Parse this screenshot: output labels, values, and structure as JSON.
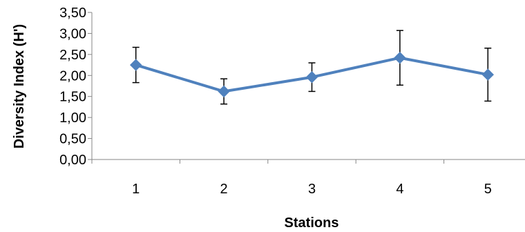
{
  "chart_data": {
    "type": "line",
    "title": "",
    "xlabel": "Stations",
    "ylabel": "Diversity Index (H')",
    "categories": [
      "1",
      "2",
      "3",
      "4",
      "5"
    ],
    "series": [
      {
        "values": [
          2.25,
          1.62,
          1.96,
          2.42,
          2.02
        ],
        "error_upper": [
          2.67,
          1.92,
          2.3,
          3.07,
          2.65
        ],
        "error_lower": [
          1.83,
          1.32,
          1.62,
          1.77,
          1.39
        ],
        "color": "#4F81BD",
        "marker": "diamond"
      }
    ],
    "ylim": [
      0,
      3.5
    ],
    "yticks": [
      "0,00",
      "0,50",
      "1,00",
      "1,50",
      "2,00",
      "2,50",
      "3,00",
      "3,50"
    ],
    "grid": false,
    "legend": "none"
  }
}
